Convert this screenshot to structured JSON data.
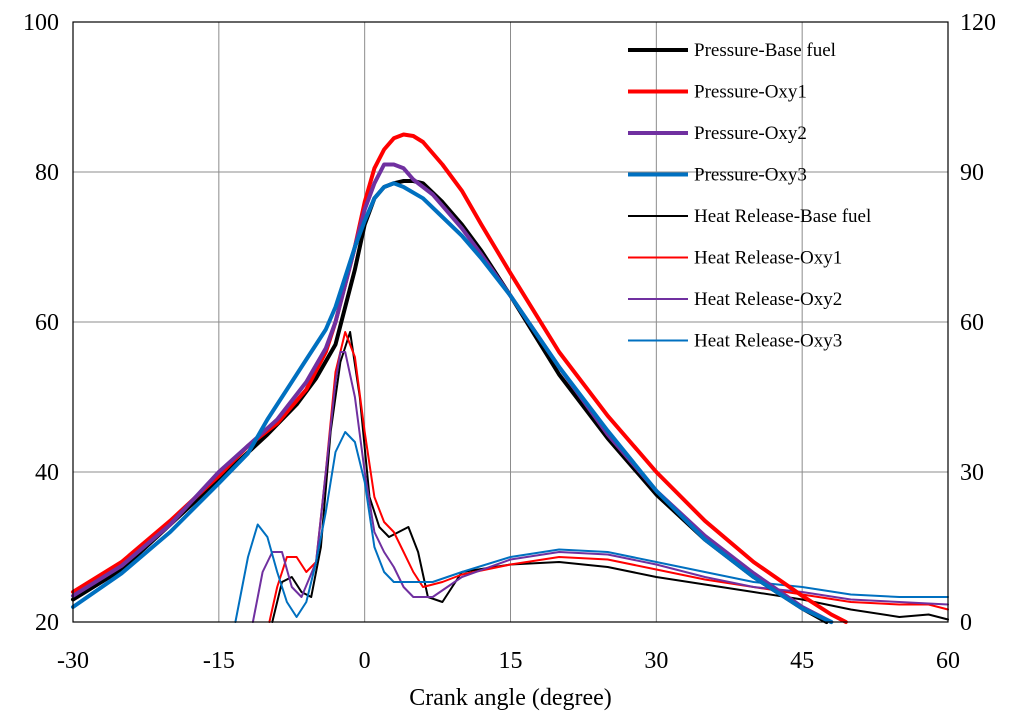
{
  "chart_data": {
    "type": "line",
    "title": "",
    "xlabel": "Crank angle (degree)",
    "xlim": [
      -30,
      60
    ],
    "xticks": [
      -30,
      -15,
      0,
      15,
      30,
      45,
      60
    ],
    "ylim": [
      20,
      100
    ],
    "yticks": [
      20,
      40,
      60,
      80,
      100
    ],
    "y2lim": [
      0,
      120
    ],
    "y2ticks": [
      0,
      30,
      60,
      90,
      120
    ],
    "grid": true,
    "legend": "top-right",
    "series": [
      {
        "name": "Pressure-Base fuel",
        "axis": "left",
        "color": "#000000",
        "width": 4,
        "points": [
          [
            -30,
            23
          ],
          [
            -25,
            27
          ],
          [
            -20,
            33
          ],
          [
            -15,
            39
          ],
          [
            -10,
            45
          ],
          [
            -7,
            49
          ],
          [
            -5,
            52.5
          ],
          [
            -3,
            57
          ],
          [
            -2,
            62
          ],
          [
            -1,
            67
          ],
          [
            0,
            73
          ],
          [
            1,
            76.5
          ],
          [
            2,
            78
          ],
          [
            3,
            78.5
          ],
          [
            4,
            78.8
          ],
          [
            5,
            78.8
          ],
          [
            6,
            78.5
          ],
          [
            8,
            76
          ],
          [
            10,
            73
          ],
          [
            12,
            69.5
          ],
          [
            15,
            63.5
          ],
          [
            20,
            53
          ],
          [
            25,
            44.5
          ],
          [
            30,
            37
          ],
          [
            35,
            31
          ],
          [
            40,
            26
          ],
          [
            45,
            21.8
          ],
          [
            47.5,
            20
          ]
        ]
      },
      {
        "name": "Pressure-Oxy1",
        "axis": "left",
        "color": "#ff0000",
        "width": 4,
        "points": [
          [
            -30,
            24
          ],
          [
            -25,
            28
          ],
          [
            -20,
            33.5
          ],
          [
            -15,
            39.5
          ],
          [
            -12,
            43.5
          ],
          [
            -9,
            46.5
          ],
          [
            -6,
            51
          ],
          [
            -4,
            56
          ],
          [
            -3,
            60
          ],
          [
            -2,
            65
          ],
          [
            -1,
            70
          ],
          [
            0,
            76
          ],
          [
            1,
            80.5
          ],
          [
            2,
            83
          ],
          [
            3,
            84.5
          ],
          [
            4,
            85
          ],
          [
            5,
            84.8
          ],
          [
            6,
            84
          ],
          [
            8,
            81
          ],
          [
            10,
            77.5
          ],
          [
            12,
            73
          ],
          [
            15,
            66.5
          ],
          [
            20,
            56
          ],
          [
            25,
            47.5
          ],
          [
            30,
            40
          ],
          [
            35,
            33.5
          ],
          [
            40,
            28
          ],
          [
            45,
            23.5
          ],
          [
            48,
            21
          ],
          [
            49.5,
            20
          ]
        ]
      },
      {
        "name": "Pressure-Oxy2",
        "axis": "left",
        "color": "#7030a0",
        "width": 4,
        "points": [
          [
            -30,
            23.5
          ],
          [
            -25,
            27.5
          ],
          [
            -20,
            33
          ],
          [
            -15,
            40
          ],
          [
            -12,
            43.5
          ],
          [
            -9,
            47
          ],
          [
            -6,
            52
          ],
          [
            -4,
            56.5
          ],
          [
            -3,
            60
          ],
          [
            -2,
            65
          ],
          [
            -1,
            70
          ],
          [
            0,
            75
          ],
          [
            1,
            78.5
          ],
          [
            2,
            81
          ],
          [
            3,
            81
          ],
          [
            4,
            80.5
          ],
          [
            5,
            79
          ],
          [
            7,
            77
          ],
          [
            10,
            72.5
          ],
          [
            12,
            69
          ],
          [
            15,
            63.5
          ],
          [
            20,
            54
          ],
          [
            25,
            45
          ],
          [
            30,
            37.5
          ],
          [
            35,
            31.5
          ],
          [
            40,
            26.5
          ],
          [
            45,
            22
          ],
          [
            48,
            20
          ]
        ]
      },
      {
        "name": "Pressure-Oxy3",
        "axis": "left",
        "color": "#0070c0",
        "width": 4,
        "points": [
          [
            -30,
            22
          ],
          [
            -25,
            26.5
          ],
          [
            -20,
            32
          ],
          [
            -15,
            38.5
          ],
          [
            -12,
            42.5
          ],
          [
            -10,
            47
          ],
          [
            -8,
            51
          ],
          [
            -6,
            55
          ],
          [
            -4,
            59
          ],
          [
            -3,
            62
          ],
          [
            -2,
            66
          ],
          [
            -1,
            70
          ],
          [
            0,
            73.5
          ],
          [
            1,
            76.5
          ],
          [
            2,
            78
          ],
          [
            3,
            78.5
          ],
          [
            4,
            78
          ],
          [
            6,
            76.5
          ],
          [
            8,
            74
          ],
          [
            10,
            71.5
          ],
          [
            12,
            68.5
          ],
          [
            15,
            63.5
          ],
          [
            20,
            54
          ],
          [
            25,
            45.5
          ],
          [
            30,
            37.5
          ],
          [
            35,
            31
          ],
          [
            40,
            26
          ],
          [
            45,
            21.8
          ],
          [
            48,
            20
          ]
        ]
      },
      {
        "name": "Heat Release-Base fuel",
        "axis": "right",
        "color": "#000000",
        "width": 2,
        "points": [
          [
            -9.5,
            0
          ],
          [
            -8.5,
            8
          ],
          [
            -7.5,
            9
          ],
          [
            -6.5,
            6
          ],
          [
            -5.5,
            5
          ],
          [
            -4.5,
            15
          ],
          [
            -3.5,
            38
          ],
          [
            -2.5,
            52
          ],
          [
            -1.5,
            58
          ],
          [
            -0.5,
            45
          ],
          [
            0.5,
            25
          ],
          [
            1.5,
            19
          ],
          [
            2.5,
            17
          ],
          [
            3.5,
            18
          ],
          [
            4.5,
            19
          ],
          [
            5.5,
            14
          ],
          [
            6.5,
            5
          ],
          [
            8,
            4
          ],
          [
            10,
            10
          ],
          [
            15,
            11.5
          ],
          [
            20,
            12
          ],
          [
            25,
            11
          ],
          [
            30,
            9
          ],
          [
            35,
            7.5
          ],
          [
            40,
            6
          ],
          [
            45,
            4.5
          ],
          [
            50,
            2.5
          ],
          [
            55,
            1
          ],
          [
            58,
            1.5
          ],
          [
            60,
            0.5
          ]
        ]
      },
      {
        "name": "Heat Release-Oxy1",
        "axis": "right",
        "color": "#ff0000",
        "width": 2,
        "points": [
          [
            -9.8,
            0
          ],
          [
            -9,
            7
          ],
          [
            -8,
            13
          ],
          [
            -7,
            13
          ],
          [
            -6,
            10
          ],
          [
            -5,
            12
          ],
          [
            -4,
            30
          ],
          [
            -3,
            50
          ],
          [
            -2,
            58
          ],
          [
            -1,
            53
          ],
          [
            0,
            38
          ],
          [
            1,
            25
          ],
          [
            2,
            20
          ],
          [
            3,
            18
          ],
          [
            4,
            14
          ],
          [
            5,
            10
          ],
          [
            6,
            7
          ],
          [
            8,
            8
          ],
          [
            10,
            9.5
          ],
          [
            15,
            11.5
          ],
          [
            20,
            13
          ],
          [
            25,
            12.5
          ],
          [
            30,
            10.5
          ],
          [
            35,
            8.5
          ],
          [
            40,
            7
          ],
          [
            45,
            5.5
          ],
          [
            50,
            4
          ],
          [
            55,
            3.5
          ],
          [
            58,
            3.5
          ],
          [
            60,
            2.5
          ]
        ]
      },
      {
        "name": "Heat Release-Oxy2",
        "axis": "right",
        "color": "#7030a0",
        "width": 2,
        "points": [
          [
            -11.5,
            0
          ],
          [
            -10.5,
            10
          ],
          [
            -9.5,
            14
          ],
          [
            -8.5,
            14
          ],
          [
            -7.5,
            7
          ],
          [
            -6.5,
            5
          ],
          [
            -5,
            12
          ],
          [
            -4,
            30
          ],
          [
            -3,
            48
          ],
          [
            -2.5,
            54
          ],
          [
            -2,
            54
          ],
          [
            -1,
            45
          ],
          [
            0,
            30
          ],
          [
            1,
            18
          ],
          [
            2,
            14
          ],
          [
            3,
            11
          ],
          [
            4,
            7
          ],
          [
            5,
            5
          ],
          [
            7,
            5
          ],
          [
            10,
            9
          ],
          [
            15,
            12.5
          ],
          [
            20,
            14
          ],
          [
            25,
            13.5
          ],
          [
            30,
            11.5
          ],
          [
            35,
            9
          ],
          [
            40,
            7
          ],
          [
            45,
            6
          ],
          [
            50,
            4.5
          ],
          [
            55,
            4
          ],
          [
            60,
            3.5
          ]
        ]
      },
      {
        "name": "Heat Release-Oxy3",
        "axis": "right",
        "color": "#0070c0",
        "width": 2,
        "points": [
          [
            -13.3,
            0
          ],
          [
            -12,
            13
          ],
          [
            -11,
            19.5
          ],
          [
            -10,
            17
          ],
          [
            -9,
            10
          ],
          [
            -8,
            4
          ],
          [
            -7,
            1
          ],
          [
            -6,
            4
          ],
          [
            -5,
            12
          ],
          [
            -4,
            22
          ],
          [
            -3,
            34
          ],
          [
            -2,
            38
          ],
          [
            -1,
            36
          ],
          [
            0,
            28
          ],
          [
            1,
            15
          ],
          [
            2,
            10
          ],
          [
            3,
            8
          ],
          [
            5,
            8
          ],
          [
            7,
            8
          ],
          [
            10,
            10
          ],
          [
            15,
            13
          ],
          [
            20,
            14.5
          ],
          [
            25,
            14
          ],
          [
            30,
            12
          ],
          [
            35,
            10
          ],
          [
            40,
            8
          ],
          [
            45,
            7
          ],
          [
            50,
            5.5
          ],
          [
            55,
            5
          ],
          [
            58,
            5
          ],
          [
            60,
            5
          ]
        ]
      }
    ]
  }
}
